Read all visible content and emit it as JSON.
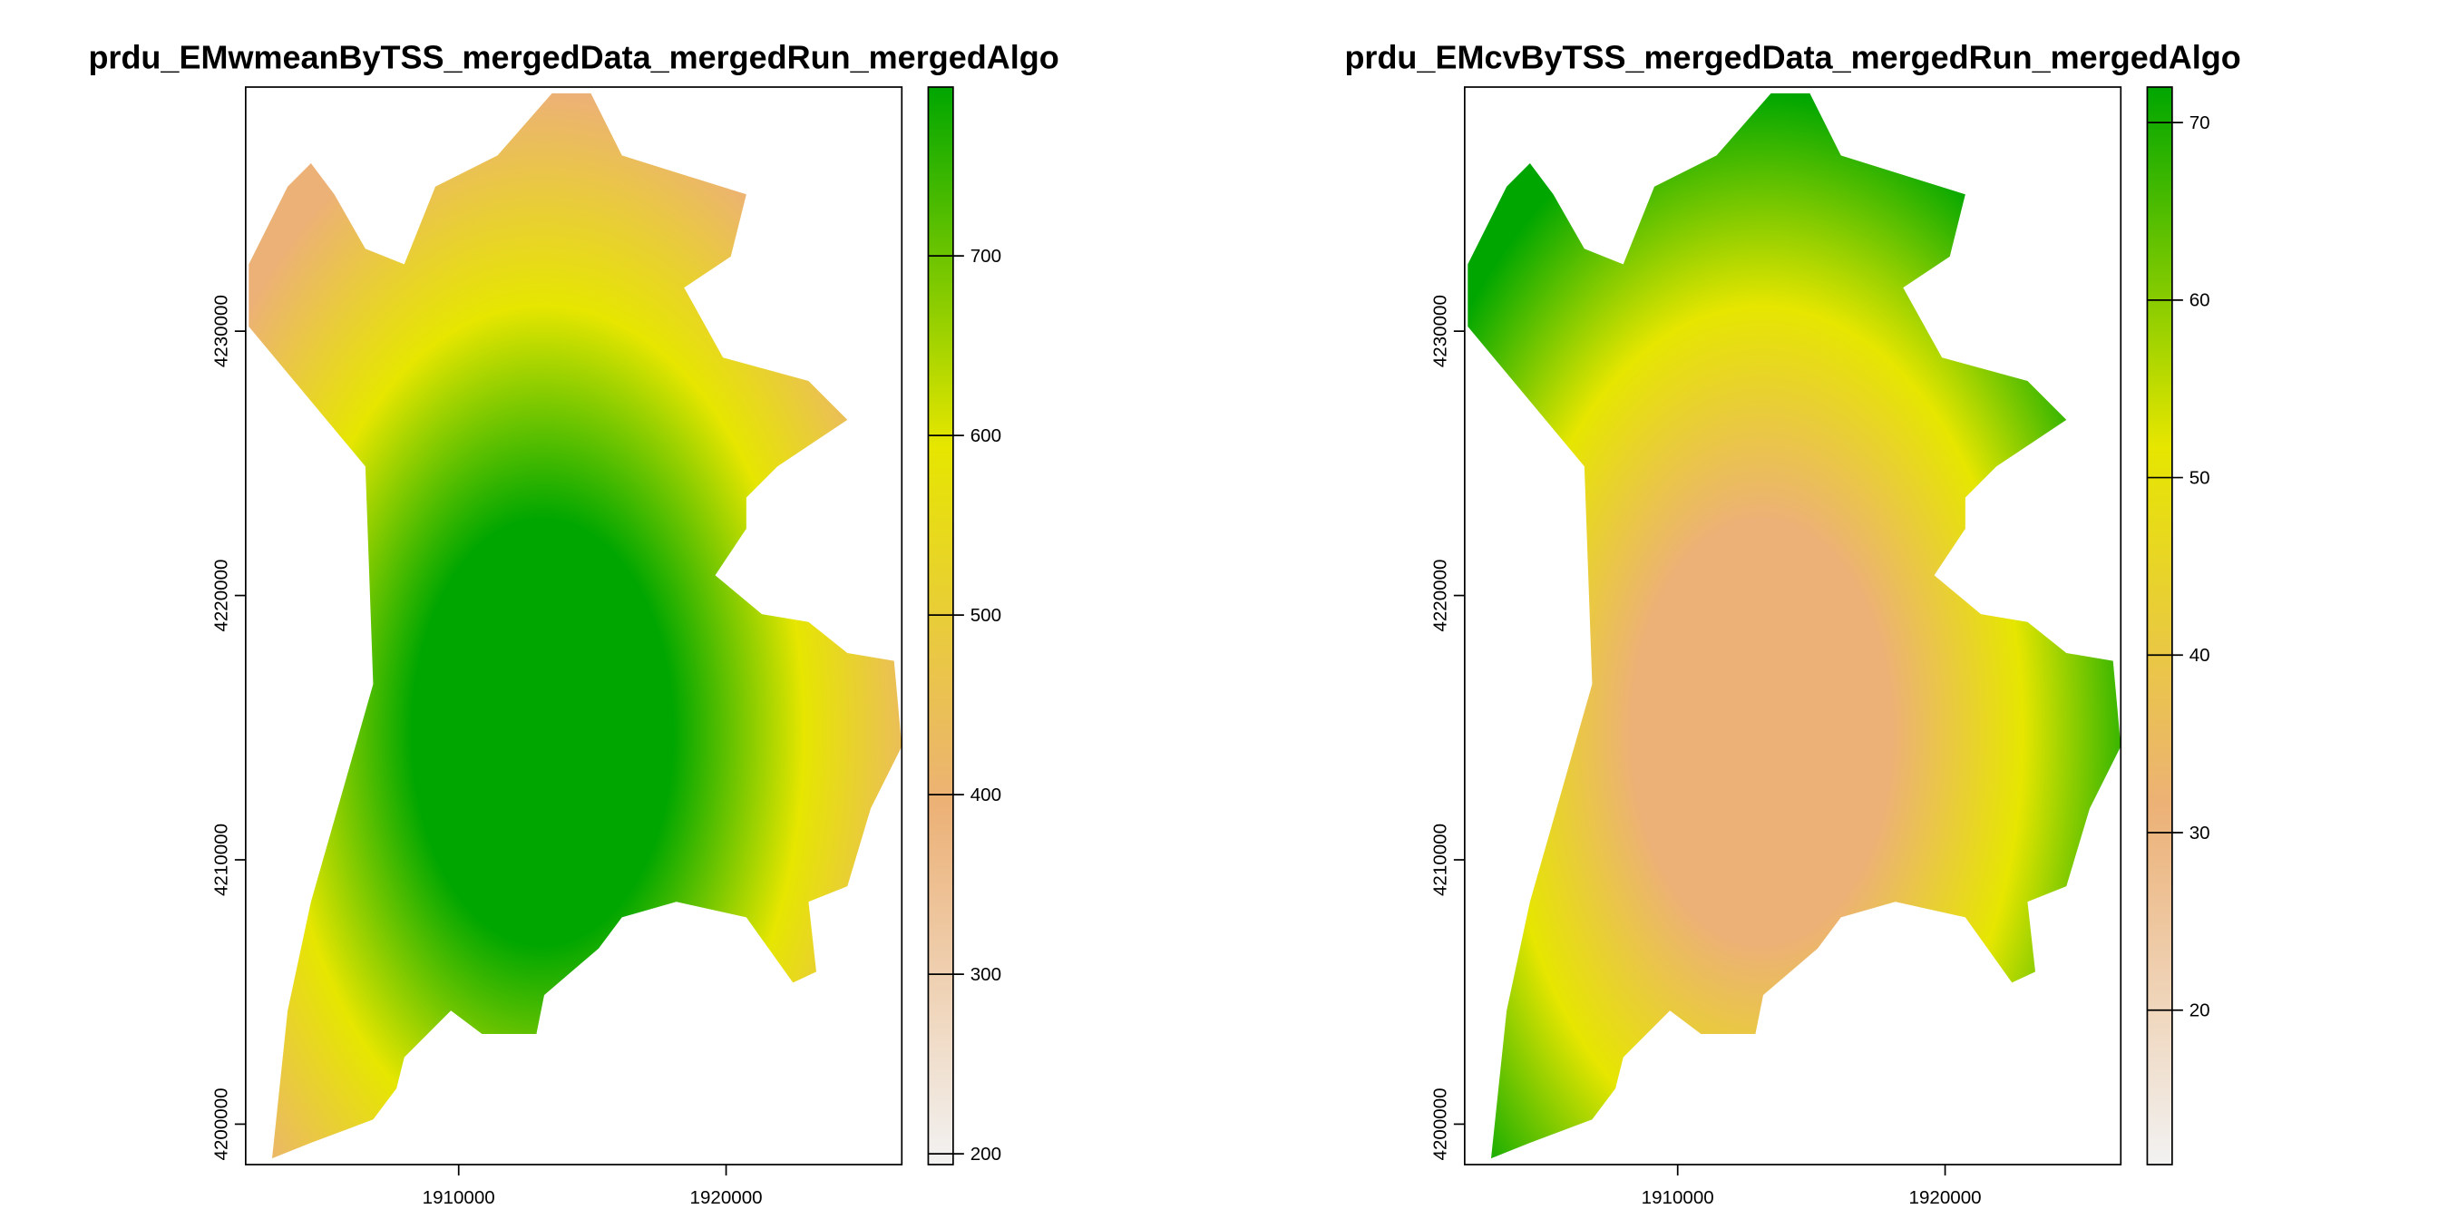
{
  "chart_data": [
    {
      "type": "raster",
      "title": "prdu_EMwmeanByTSS_mergedData_mergedRun_mergedAlgo",
      "xlim": [
        1902035,
        1926570
      ],
      "ylim": [
        4198470,
        4239235
      ],
      "xticks": [
        1910000,
        1920000
      ],
      "yticks": [
        4200000,
        4210000,
        4220000,
        4230000
      ],
      "zlim": [
        194,
        794
      ],
      "zticks": [
        200,
        300,
        400,
        500,
        600,
        700
      ],
      "palette": [
        "#F2F2F2",
        "#ECB176",
        "#E6E600",
        "#00A600"
      ]
    },
    {
      "type": "raster",
      "title": "prdu_EMcvByTSS_mergedData_mergedRun_mergedAlgo",
      "xlim": [
        1902035,
        1926570
      ],
      "ylim": [
        4198470,
        4239235
      ],
      "xticks": [
        1910000,
        1920000
      ],
      "yticks": [
        4200000,
        4210000,
        4220000,
        4230000
      ],
      "zlim": [
        11.3,
        72
      ],
      "zticks": [
        20,
        30,
        40,
        50,
        60,
        70
      ],
      "palette": [
        "#F2F2F2",
        "#ECB176",
        "#E6E600",
        "#00A600"
      ]
    }
  ]
}
